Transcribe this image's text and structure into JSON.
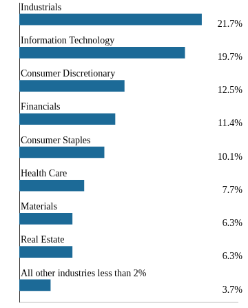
{
  "chart_data": {
    "type": "bar",
    "orientation": "horizontal",
    "categories": [
      "Industrials",
      "Information Technology",
      "Consumer Discretionary",
      "Financials",
      "Consumer Staples",
      "Health Care",
      "Materials",
      "Real Estate",
      "All other industries less than 2%"
    ],
    "values": [
      21.7,
      19.7,
      12.5,
      11.4,
      10.1,
      7.7,
      6.3,
      6.3,
      3.7
    ],
    "value_labels": [
      "21.7%",
      "19.7%",
      "12.5%",
      "11.4%",
      "10.1%",
      "7.7%",
      "6.3%",
      "6.3%",
      "3.7%"
    ],
    "color": "#1c6a97",
    "xlim": [
      0,
      26
    ],
    "data_labels": true,
    "tick_labels": false,
    "grid": false
  }
}
